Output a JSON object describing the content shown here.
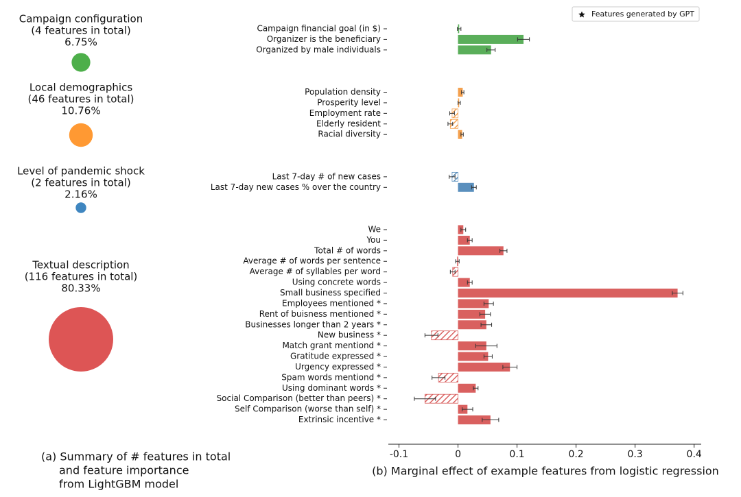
{
  "chart_data": [
    {
      "type": "bubble",
      "categories": [
        "Campaign configuration",
        "Local demographics",
        "Level of pandemic shock",
        "Textual description"
      ],
      "subtitles": [
        "(4 features in total)",
        "(46 features in total)",
        "(2 features in total)",
        "(116 features in total)"
      ],
      "values": [
        6.75,
        10.76,
        2.16,
        80.33
      ],
      "value_labels": [
        "6.75%",
        "10.76%",
        "2.16%",
        "80.33%"
      ],
      "colors": [
        "#4daf4a",
        "#ff9933",
        "#3f86c0",
        "#dd5555"
      ],
      "caption": [
        "(a) Summary of # features in total",
        "and feature importance",
        "from LightGBM model"
      ]
    },
    {
      "type": "barh",
      "caption": "(b) Marginal effect of example features from logistic regression",
      "legend": {
        "label": "Features generated by GPT",
        "position": "upper right"
      },
      "xlim": [
        -0.118,
        0.412
      ],
      "xticks": [
        -0.1,
        0,
        0.1,
        0.2,
        0.3,
        0.4
      ],
      "series": [
        {
          "color": "#5aae5a",
          "categories": [
            "Campaign financial goal (in $)",
            "Organizer is the beneficiary",
            "Organized by male individuals"
          ],
          "values": [
            0.002,
            0.111,
            0.056
          ],
          "errors": [
            0.003,
            0.01,
            0.007
          ]
        },
        {
          "color": "#f4a04e",
          "categories": [
            "Population density",
            "Prosperity level",
            "Employment rate",
            "Elderly resident",
            "Racial diversity"
          ],
          "values": [
            0.008,
            0.002,
            -0.01,
            -0.013,
            0.007
          ],
          "errors": [
            0.002,
            0.002,
            0.004,
            0.004,
            0.002
          ]
        },
        {
          "color": "#5a8fbd",
          "categories": [
            "Last 7-day # of new cases",
            "Last 7-day new cases % over the country"
          ],
          "values": [
            -0.01,
            0.027
          ],
          "errors": [
            0.005,
            0.004
          ]
        },
        {
          "color": "#d9605f",
          "categories": [
            "We",
            "You",
            "Total # of words",
            "Average # of words per sentence",
            "Average # of syllables per word",
            "Using concrete words",
            "Small business specified",
            "Employees mentioned *",
            "Rent of buisness mentioned *",
            "Businesses longer than 2 years *",
            "New business *",
            "Match grant mentiond *",
            "Gratitude expressed *",
            "Urgency expressed *",
            "Spam words mentiond *",
            "Using dominant words *",
            "Social Comparison (better than peers) *",
            "Self Comparison (worse than self) *",
            "Extrinsic incentive *"
          ],
          "values": [
            0.009,
            0.02,
            0.077,
            -0.001,
            -0.009,
            0.02,
            0.372,
            0.052,
            0.046,
            0.048,
            -0.045,
            0.048,
            0.051,
            0.088,
            -0.033,
            0.03,
            -0.056,
            0.016,
            0.055
          ],
          "errors": [
            0.004,
            0.004,
            0.006,
            0.003,
            0.004,
            0.004,
            0.009,
            0.008,
            0.009,
            0.009,
            0.011,
            0.018,
            0.007,
            0.012,
            0.011,
            0.004,
            0.018,
            0.009,
            0.014
          ]
        }
      ]
    }
  ]
}
